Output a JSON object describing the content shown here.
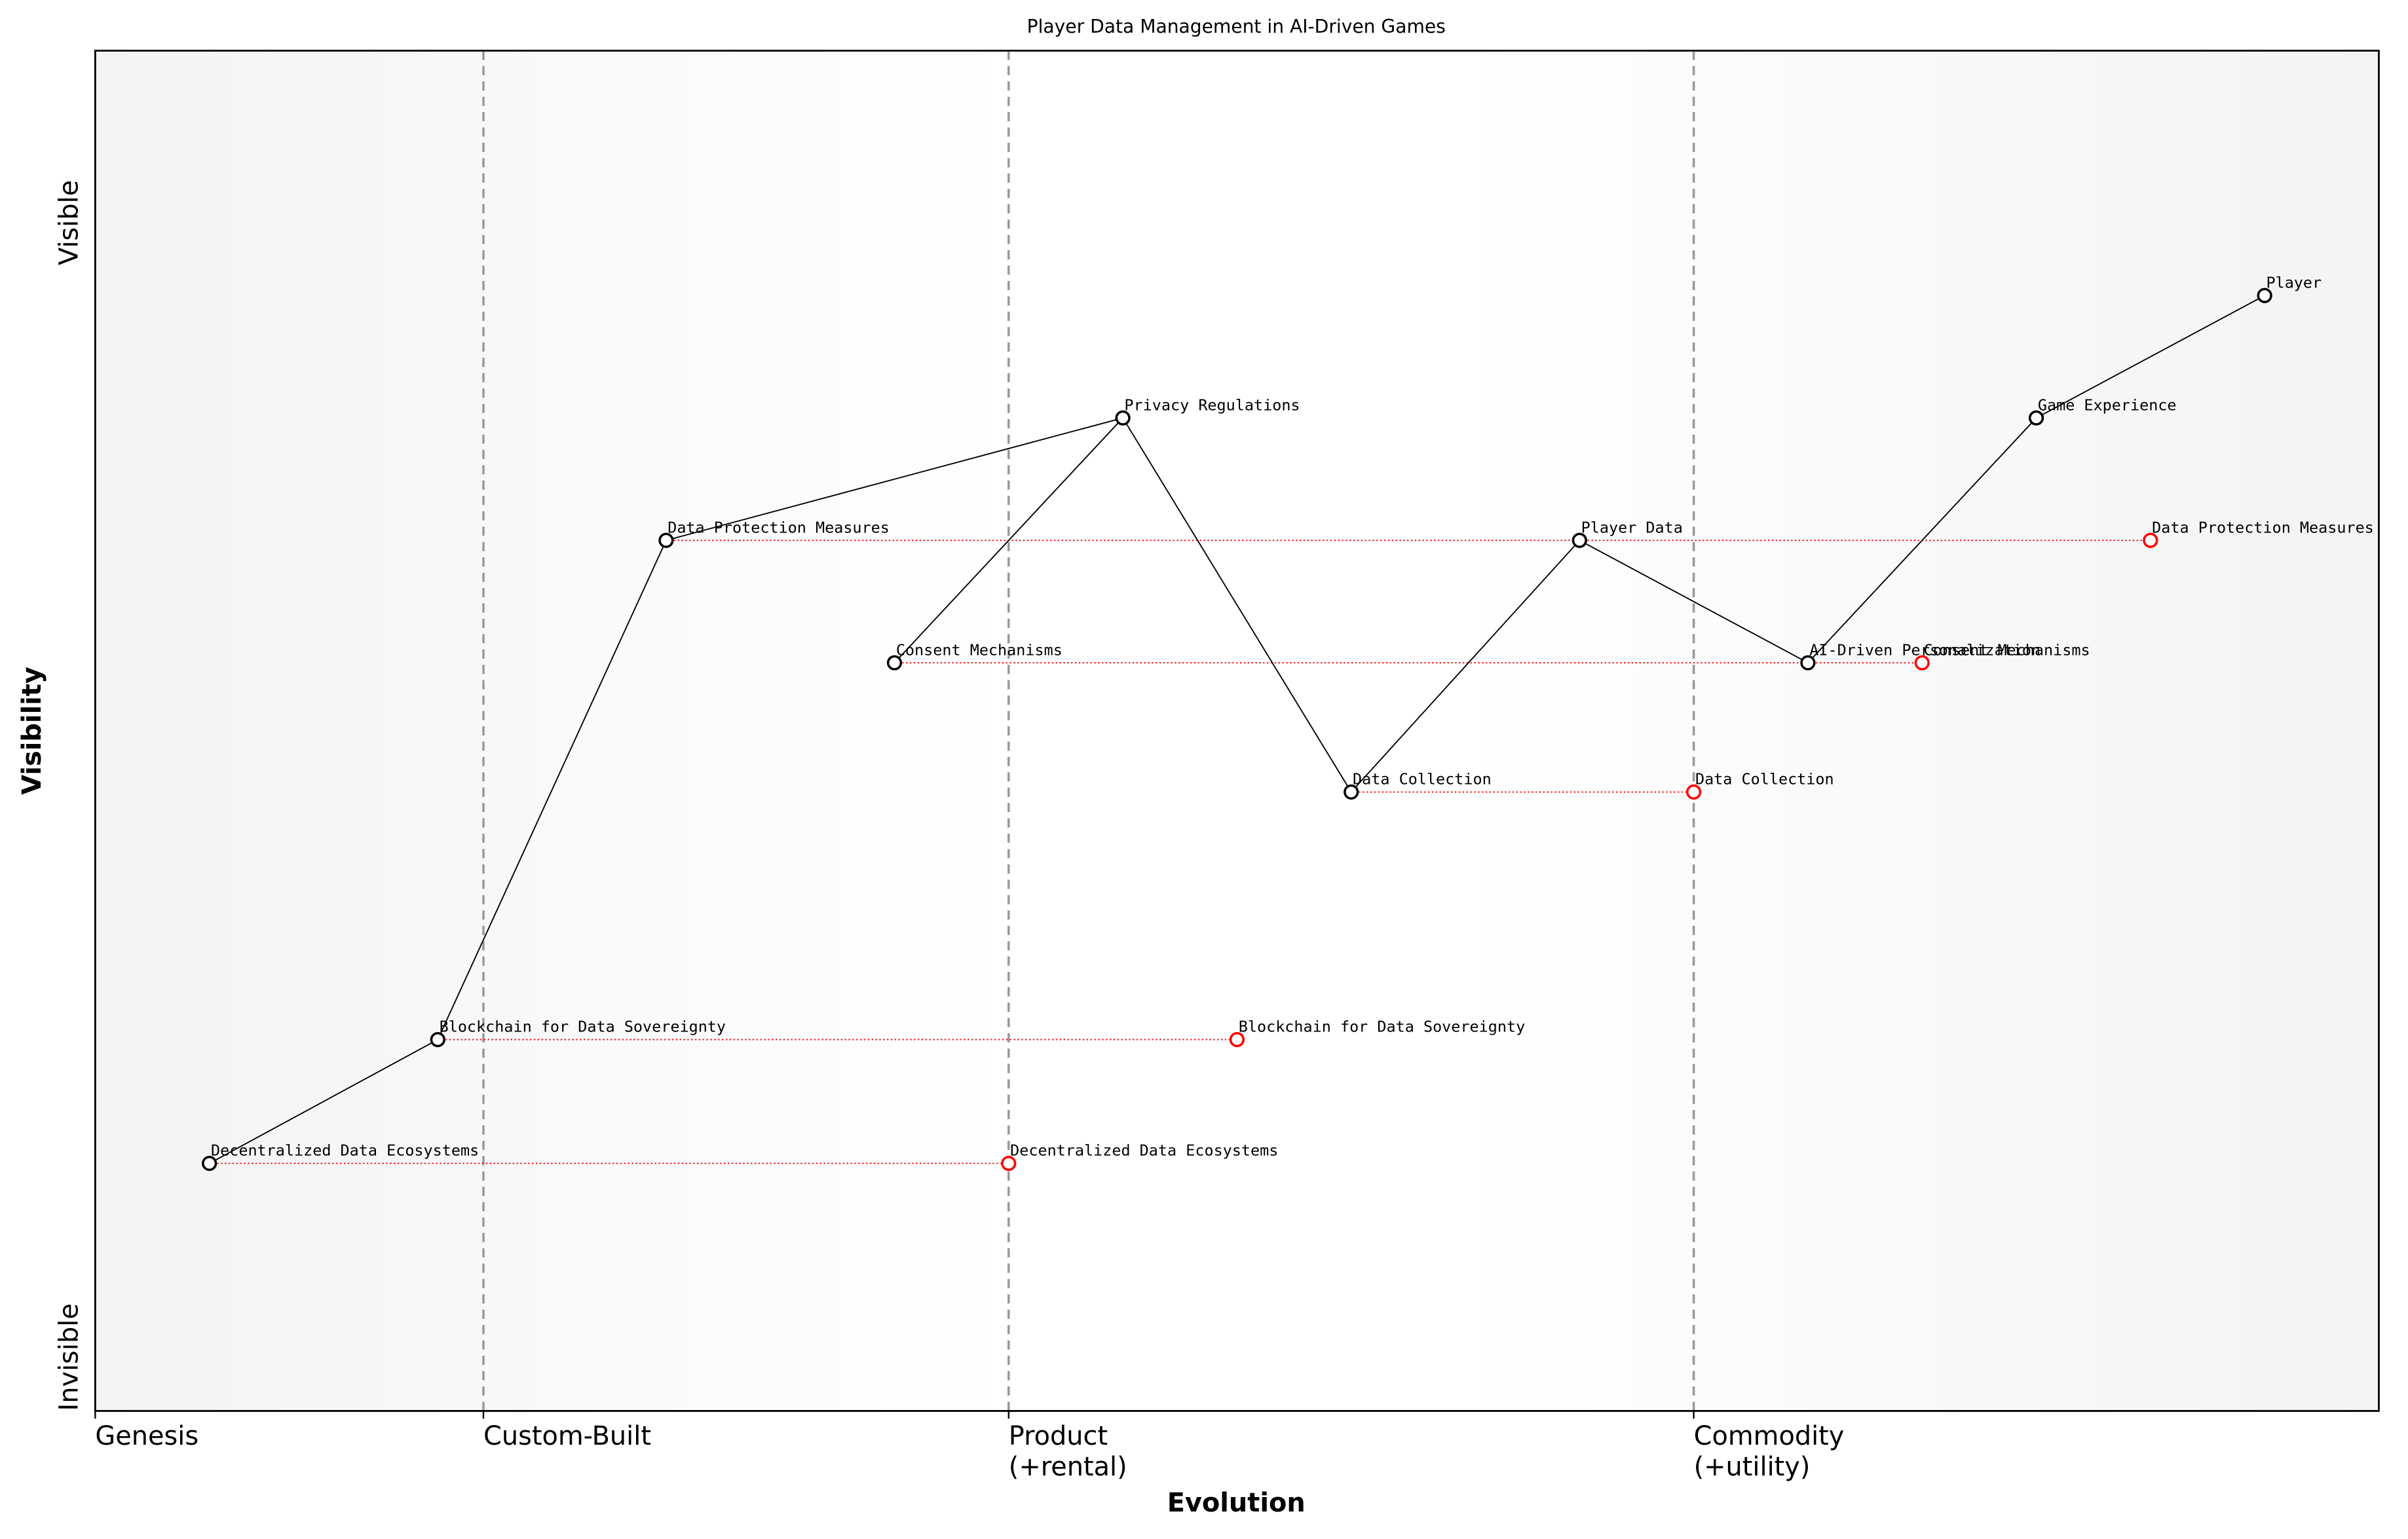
{
  "chart_data": {
    "type": "wardley",
    "title": "Player Data Management in AI-Driven Games",
    "x_label": "Evolution",
    "y_label": "Visibility",
    "y_end_labels": [
      "Invisible",
      "Visible"
    ],
    "xlim": [
      0,
      1
    ],
    "ylim": [
      0,
      1
    ],
    "xticks": [
      {
        "value": 0,
        "label": "Genesis"
      },
      {
        "value": 0.17,
        "label": "Custom-Built"
      },
      {
        "value": 0.4,
        "label": "Product\n(+rental)"
      },
      {
        "value": 0.7,
        "label": "Commodity\n(+utility)"
      }
    ],
    "nodes": [
      {
        "name": "Player",
        "x": 0.95,
        "y": 0.82
      },
      {
        "name": "Game Experience",
        "x": 0.85,
        "y": 0.73
      },
      {
        "name": "Privacy Regulations",
        "x": 0.45,
        "y": 0.73
      },
      {
        "name": "Data Protection Measures",
        "x": 0.25,
        "y": 0.64
      },
      {
        "name": "Player Data",
        "x": 0.65,
        "y": 0.64
      },
      {
        "name": "Consent Mechanisms",
        "x": 0.35,
        "y": 0.55
      },
      {
        "name": "AI-Driven Personalization",
        "x": 0.75,
        "y": 0.55
      },
      {
        "name": "Data Collection",
        "x": 0.55,
        "y": 0.455
      },
      {
        "name": "Blockchain for Data Sovereignty",
        "x": 0.15,
        "y": 0.273
      },
      {
        "name": "Decentralized Data Ecosystems",
        "x": 0.05,
        "y": 0.182
      }
    ],
    "links": [
      [
        "Player",
        "Game Experience"
      ],
      [
        "Game Experience",
        "AI-Driven Personalization"
      ],
      [
        "AI-Driven Personalization",
        "Player Data"
      ],
      [
        "Player Data",
        "Data Collection"
      ],
      [
        "Data Collection",
        "Privacy Regulations"
      ],
      [
        "Privacy Regulations",
        "Consent Mechanisms"
      ],
      [
        "Privacy Regulations",
        "Data Protection Measures"
      ],
      [
        "Data Protection Measures",
        "Blockchain for Data Sovereignty"
      ],
      [
        "Blockchain for Data Sovereignty",
        "Decentralized Data Ecosystems"
      ]
    ],
    "evolve": [
      {
        "name": "Data Protection Measures",
        "x": 0.9
      },
      {
        "name": "Consent Mechanisms",
        "x": 0.8
      },
      {
        "name": "Data Collection",
        "x": 0.7
      },
      {
        "name": "Blockchain for Data Sovereignty",
        "x": 0.5
      },
      {
        "name": "Decentralized Data Ecosystems",
        "x": 0.4
      }
    ],
    "node_color": "#000000",
    "evolve_color": "#ff0000"
  }
}
